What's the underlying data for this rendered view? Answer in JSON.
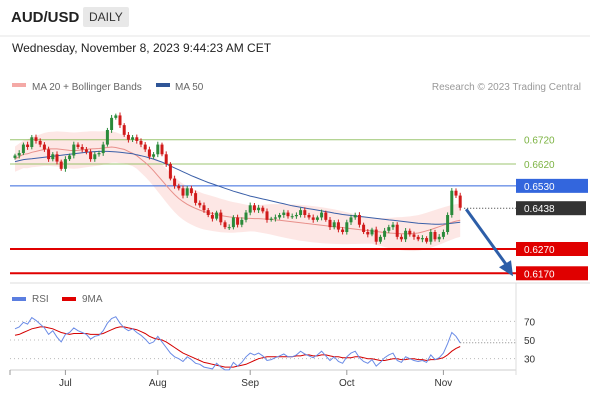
{
  "header": {
    "symbol": "AUD/USD",
    "timeframe": "DAILY",
    "datetime": "Wednesday, November 8, 2023 9:44:23 AM CET"
  },
  "legend": {
    "ma20": {
      "label": "MA 20 + Bollinger Bands",
      "color": "#f4a9a6"
    },
    "ma50": {
      "label": "MA 50",
      "color": "#2f5597"
    },
    "rsi": {
      "label": "RSI",
      "color": "#5b7ee0"
    },
    "rsi_ma": {
      "label": "9MA",
      "color": "#e00000"
    }
  },
  "credit": "Research © 2023 Trading Central",
  "levels": [
    {
      "value": 0.672,
      "label": "0.6720",
      "kind": "resistance",
      "color": "#7cb342"
    },
    {
      "value": 0.662,
      "label": "0.6620",
      "kind": "resistance",
      "color": "#7cb342"
    },
    {
      "value": 0.653,
      "label": "0.6530",
      "kind": "pivot",
      "color": "#3366dd"
    },
    {
      "value": 0.6438,
      "label": "0.6438",
      "kind": "last-price",
      "color": "#333333"
    },
    {
      "value": 0.627,
      "label": "0.6270",
      "kind": "support",
      "color": "#e00000"
    },
    {
      "value": 0.617,
      "label": "0.6170",
      "kind": "support",
      "color": "#e00000"
    }
  ],
  "rsi_ticks": [
    "70",
    "50",
    "30"
  ],
  "x_ticks": [
    "Jul",
    "Aug",
    "Sep",
    "Oct",
    "Nov"
  ],
  "chart_data": {
    "type": "candlestick",
    "price_range": [
      0.613,
      0.69
    ],
    "rsi_range": [
      20,
      80
    ],
    "x_ticks": [
      "Jul",
      "Aug",
      "Sep",
      "Oct",
      "Nov"
    ],
    "tick_index": [
      12,
      34,
      56,
      79,
      102
    ],
    "close": [
      0.6655,
      0.6665,
      0.67,
      0.669,
      0.673,
      0.6715,
      0.67,
      0.668,
      0.664,
      0.666,
      0.663,
      0.66,
      0.664,
      0.6655,
      0.67,
      0.669,
      0.668,
      0.667,
      0.664,
      0.666,
      0.6665,
      0.67,
      0.676,
      0.681,
      0.682,
      0.678,
      0.674,
      0.672,
      0.673,
      0.6715,
      0.67,
      0.668,
      0.665,
      0.666,
      0.67,
      0.666,
      0.662,
      0.656,
      0.653,
      0.652,
      0.649,
      0.652,
      0.65,
      0.646,
      0.645,
      0.643,
      0.641,
      0.6395,
      0.642,
      0.638,
      0.636,
      0.636,
      0.64,
      0.637,
      0.639,
      0.642,
      0.645,
      0.643,
      0.644,
      0.6425,
      0.639,
      0.6395,
      0.64,
      0.641,
      0.642,
      0.6405,
      0.6405,
      0.641,
      0.643,
      0.641,
      0.64,
      0.639,
      0.64,
      0.642,
      0.639,
      0.636,
      0.638,
      0.635,
      0.634,
      0.638,
      0.64,
      0.641,
      0.637,
      0.634,
      0.633,
      0.635,
      0.63,
      0.632,
      0.6345,
      0.636,
      0.637,
      0.632,
      0.631,
      0.6345,
      0.633,
      0.632,
      0.631,
      0.6315,
      0.63,
      0.634,
      0.631,
      0.632,
      0.634,
      0.641,
      0.651,
      0.649,
      0.644
    ],
    "ma20": [
      0.664,
      0.665,
      0.666,
      0.6662,
      0.6668,
      0.6672,
      0.6676,
      0.668,
      0.6682,
      0.6682,
      0.6682,
      0.668,
      0.6678,
      0.6676,
      0.6675,
      0.6676,
      0.6678,
      0.668,
      0.6682,
      0.6683,
      0.6684,
      0.6686,
      0.6688,
      0.669,
      0.6688,
      0.6684,
      0.668,
      0.6672,
      0.6664,
      0.6654,
      0.664,
      0.6626,
      0.661,
      0.6592,
      0.6572,
      0.6552,
      0.6532,
      0.6512,
      0.6494,
      0.6478,
      0.6465,
      0.6454,
      0.6445,
      0.6437,
      0.643,
      0.6424,
      0.642,
      0.6416,
      0.6412,
      0.6408,
      0.6405,
      0.6402,
      0.64,
      0.6399,
      0.6398,
      0.6397,
      0.6396,
      0.6395,
      0.6395,
      0.6394,
      0.6393,
      0.6392,
      0.639,
      0.6388,
      0.6386,
      0.6384,
      0.6382,
      0.638,
      0.6378,
      0.6376,
      0.6374,
      0.6372,
      0.637,
      0.6368,
      0.6366,
      0.6364,
      0.6362,
      0.636,
      0.6358,
      0.6356,
      0.6354,
      0.6352,
      0.635,
      0.6348,
      0.6346,
      0.6344,
      0.6342,
      0.634,
      0.6338,
      0.6336,
      0.6335,
      0.6334,
      0.6333,
      0.6333,
      0.6333,
      0.6334,
      0.6336,
      0.634,
      0.6345,
      0.635,
      0.6356,
      0.6362,
      0.6368,
      0.6374,
      0.638,
      0.6385,
      0.6388
    ],
    "ma50": [
      0.663,
      0.6634,
      0.6638,
      0.664,
      0.6642,
      0.6644,
      0.6646,
      0.6648,
      0.665,
      0.6652,
      0.6654,
      0.6656,
      0.6658,
      0.666,
      0.6662,
      0.6664,
      0.6666,
      0.6668,
      0.667,
      0.6671,
      0.6672,
      0.6672,
      0.6672,
      0.6671,
      0.667,
      0.6668,
      0.6666,
      0.6664,
      0.6662,
      0.6658,
      0.6654,
      0.665,
      0.6645,
      0.664,
      0.6634,
      0.6628,
      0.662,
      0.6612,
      0.6604,
      0.6596,
      0.6588,
      0.658,
      0.6572,
      0.6565,
      0.6558,
      0.6551,
      0.6544,
      0.6538,
      0.6532,
      0.6526,
      0.652,
      0.6514,
      0.6508,
      0.6503,
      0.6498,
      0.6493,
      0.6488,
      0.6484,
      0.648,
      0.6476,
      0.6472,
      0.6468,
      0.6464,
      0.646,
      0.6456,
      0.6452,
      0.6448,
      0.6445,
      0.6442,
      0.6439,
      0.6436,
      0.6433,
      0.643,
      0.6427,
      0.6424,
      0.6421,
      0.6418,
      0.6415,
      0.6412,
      0.641,
      0.6408,
      0.6406,
      0.6404,
      0.6402,
      0.64,
      0.6398,
      0.6396,
      0.6394,
      0.6392,
      0.639,
      0.6388,
      0.6386,
      0.6384,
      0.6382,
      0.638,
      0.6378,
      0.6376,
      0.6375,
      0.6374,
      0.6373,
      0.6372,
      0.6372,
      0.6373,
      0.6374,
      0.6376,
      0.6378,
      0.638
    ],
    "bb_width": 0.0065,
    "rsi": [
      62,
      64,
      69,
      67,
      74,
      71,
      67,
      63,
      56,
      60,
      53,
      48,
      56,
      58,
      63,
      60,
      58,
      56,
      51,
      54,
      55,
      60,
      68,
      73,
      75,
      68,
      63,
      60,
      62,
      58,
      55,
      51,
      46,
      48,
      54,
      48,
      42,
      36,
      32,
      30,
      27,
      32,
      29,
      25,
      24,
      21,
      20,
      19,
      25,
      21,
      18,
      18,
      26,
      22,
      26,
      32,
      36,
      34,
      36,
      33,
      28,
      29,
      31,
      33,
      35,
      32,
      32,
      34,
      38,
      35,
      33,
      31,
      34,
      38,
      33,
      28,
      32,
      27,
      25,
      32,
      36,
      38,
      31,
      27,
      25,
      29,
      22,
      26,
      31,
      34,
      36,
      28,
      26,
      32,
      30,
      28,
      27,
      28,
      26,
      34,
      29,
      31,
      36,
      46,
      58,
      54,
      47
    ],
    "rsi_ma": [
      55,
      56,
      58,
      60,
      62,
      63,
      64,
      64,
      63,
      62,
      60,
      58,
      57,
      56,
      57,
      57,
      57,
      57,
      56,
      56,
      56,
      57,
      59,
      61,
      63,
      64,
      64,
      63,
      62,
      61,
      59,
      57,
      54,
      52,
      51,
      50,
      48,
      45,
      42,
      39,
      36,
      34,
      32,
      30,
      28,
      26,
      25,
      24,
      23,
      22,
      21,
      21,
      21,
      22,
      23,
      24,
      26,
      28,
      30,
      31,
      32,
      32,
      32,
      32,
      32,
      32,
      32,
      33,
      33,
      34,
      34,
      33,
      33,
      34,
      34,
      33,
      32,
      32,
      31,
      31,
      31,
      32,
      32,
      31,
      30,
      30,
      29,
      28,
      28,
      29,
      30,
      30,
      29,
      29,
      30,
      30,
      29,
      29,
      28,
      29,
      29,
      30,
      31,
      34,
      38,
      41,
      43
    ],
    "forecast": {
      "from": 0.6438,
      "to": 0.617
    }
  }
}
